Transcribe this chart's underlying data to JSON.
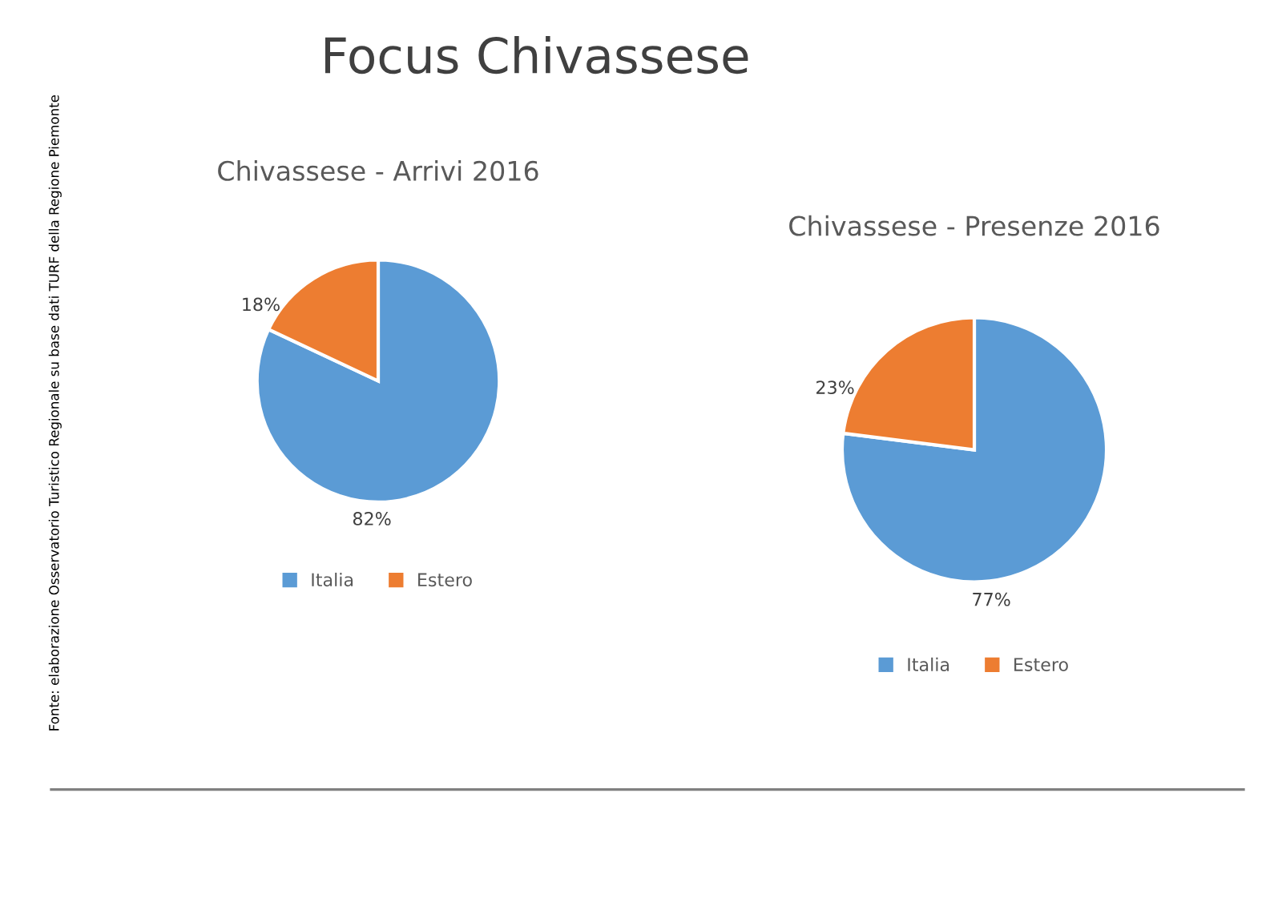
{
  "chart_data": [
    {
      "type": "pie",
      "title": "Chivassese - Arrivi 2016",
      "categories": [
        "Italia",
        "Estero"
      ],
      "values": [
        82,
        18
      ],
      "value_labels": [
        "82%",
        "18%"
      ],
      "colors": [
        "#5b9bd5",
        "#ed7d31"
      ],
      "legend": "bottom",
      "annotations": [
        "Focus Chivassese",
        "Fonte: elaborazione Osservatorio Turistico Regionale su base dati TURF della Regione Piemonte"
      ]
    },
    {
      "type": "pie",
      "title": "Chivassese - Presenze 2016",
      "categories": [
        "Italia",
        "Estero"
      ],
      "values": [
        77,
        23
      ],
      "value_labels": [
        "77%",
        "23%"
      ],
      "colors": [
        "#5b9bd5",
        "#ed7d31"
      ],
      "legend": "bottom"
    }
  ]
}
